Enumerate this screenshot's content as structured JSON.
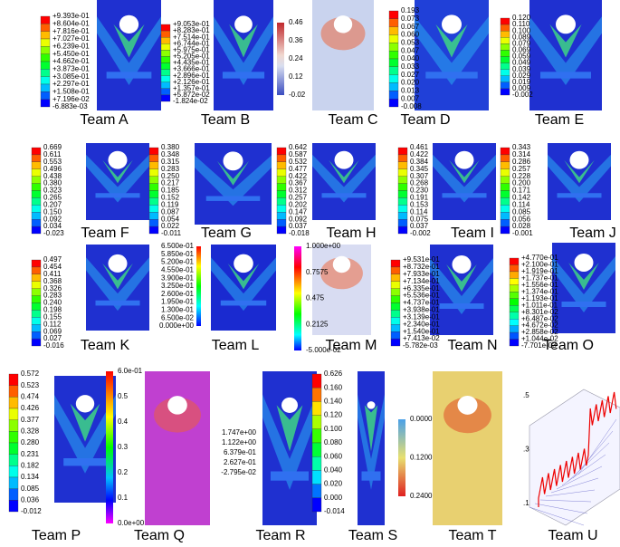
{
  "panels": [
    {
      "label": "Team A",
      "legend": [
        "+9.393e-01",
        "+8.604e-01",
        "+7.816e-01",
        "+7.027e-01",
        "+6.239e-01",
        "+5.450e-01",
        "+4.662e-01",
        "+3.873e-01",
        "+3.085e-01",
        "+2.297e-01",
        "+1.508e-01",
        "+7.196e-02",
        "-6.883e-03"
      ]
    },
    {
      "label": "Team B",
      "legend": [
        "+9.053e-01",
        "+8.283e-01",
        "+7.514e-01",
        "+6.744e-01",
        "+5.975e-01",
        "+5.205e-01",
        "+4.435e-01",
        "+3.666e-01",
        "+2.896e-01",
        "+2.126e-01",
        "+1.357e-01",
        "+5.872e-02",
        "-1.824e-02"
      ]
    },
    {
      "label": "Team C",
      "legend": [
        "0.46",
        "0.36",
        "0.24",
        "0.12",
        "-0.02"
      ]
    },
    {
      "label": "Team D",
      "legend": [
        "0.193",
        "0.073",
        "0.067",
        "0.060",
        "0.053",
        "0.047",
        "0.040",
        "0.033",
        "0.027",
        "0.020",
        "0.013",
        "0.007",
        "-0.008"
      ]
    },
    {
      "label": "Team E",
      "legend": [
        "0.120",
        "0.110",
        "0.100",
        "0.089",
        "0.079",
        "0.069",
        "0.059",
        "0.049",
        "0.039",
        "0.029",
        "0.019",
        "0.009",
        "-0.002"
      ]
    },
    {
      "label": "Team F",
      "legend": [
        "0.669",
        "0.611",
        "0.553",
        "0.496",
        "0.438",
        "0.380",
        "0.323",
        "0.265",
        "0.207",
        "0.150",
        "0.092",
        "0.034",
        "-0.023"
      ]
    },
    {
      "label": "Team G",
      "legend": [
        "0.380",
        "0.348",
        "0.315",
        "0.283",
        "0.250",
        "0.217",
        "0.185",
        "0.152",
        "0.119",
        "0.087",
        "0.054",
        "0.022",
        "-0.011"
      ]
    },
    {
      "label": "Team H",
      "legend": [
        "0.642",
        "0.587",
        "0.532",
        "0.477",
        "0.422",
        "0.367",
        "0.312",
        "0.257",
        "0.202",
        "0.147",
        "0.092",
        "0.037",
        "-0.018"
      ]
    },
    {
      "label": "Team I",
      "legend": [
        "0.461",
        "0.422",
        "0.384",
        "0.345",
        "0.307",
        "0.268",
        "0.230",
        "0.191",
        "0.153",
        "0.114",
        "0.075",
        "0.037",
        "-0.002"
      ]
    },
    {
      "label": "Team J",
      "legend": [
        "0.343",
        "0.314",
        "0.286",
        "0.257",
        "0.228",
        "0.200",
        "0.171",
        "0.142",
        "0.114",
        "0.085",
        "0.056",
        "0.028",
        "-0.001"
      ]
    },
    {
      "label": "Team K",
      "legend": [
        "0.497",
        "0.454",
        "0.411",
        "0.368",
        "0.326",
        "0.283",
        "0.240",
        "0.198",
        "0.155",
        "0.112",
        "0.069",
        "0.027",
        "-0.016"
      ]
    },
    {
      "label": "Team L",
      "legend": [
        "6.500e-01",
        "5.850e-01",
        "5.200e-01",
        "4.550e-01",
        "3.900e-01",
        "3.250e-01",
        "2.600e-01",
        "1.950e-01",
        "1.300e-01",
        "6.500e-02",
        "0.000e+00"
      ]
    },
    {
      "label": "Team M",
      "legend": [
        "1.000e+00",
        "0.7575",
        "0.475",
        "0.2125",
        "-5.000e-02"
      ]
    },
    {
      "label": "Team N",
      "legend": [
        "+9.531e-01",
        "+8.732e-01",
        "+7.933e-01",
        "+7.134e-01",
        "+6.335e-01",
        "+5.536e-01",
        "+4.737e-01",
        "+3.938e-01",
        "+3.139e-01",
        "+2.340e-01",
        "+1.540e-01",
        "+7.413e-02",
        "-5.782e-03"
      ]
    },
    {
      "label": "Team O",
      "legend": [
        "+4.770e-01",
        "+2.100e-01",
        "+1.919e-01",
        "+1.737e-01",
        "+1.556e-01",
        "+1.374e-01",
        "+1.193e-01",
        "+1.011e-01",
        "+8.301e-02",
        "+6.487e-02",
        "+4.672e-02",
        "+2.858e-02",
        "+1.044e-02",
        "-7.701e-03"
      ]
    },
    {
      "label": "Team P",
      "legend": [
        "0.572",
        "0.523",
        "0.474",
        "0.426",
        "0.377",
        "0.328",
        "0.280",
        "0.231",
        "0.182",
        "0.134",
        "0.085",
        "0.036",
        "-0.012"
      ]
    },
    {
      "label": "Team Q",
      "legend": [
        "6.0e-01",
        "0.5",
        "0.4",
        "0.3",
        "0.2",
        "0.1",
        "0.0e+00"
      ]
    },
    {
      "label": "Team R",
      "legend": [
        "1.747e+00",
        "1.122e+00",
        "6.379e-01",
        "2.627e-01",
        "-2.795e-02"
      ]
    },
    {
      "label": "Team S",
      "legend": [
        "0.626",
        "0.160",
        "0.140",
        "0.120",
        "0.100",
        "0.080",
        "0.060",
        "0.040",
        "0.020",
        "0.000",
        "-0.014"
      ]
    },
    {
      "label": "Team T",
      "legend": [
        "0.0000",
        "0.1200",
        "0.2400"
      ]
    },
    {
      "label": "Team U",
      "legend": [
        ".5",
        ".3",
        ".1"
      ]
    }
  ]
}
